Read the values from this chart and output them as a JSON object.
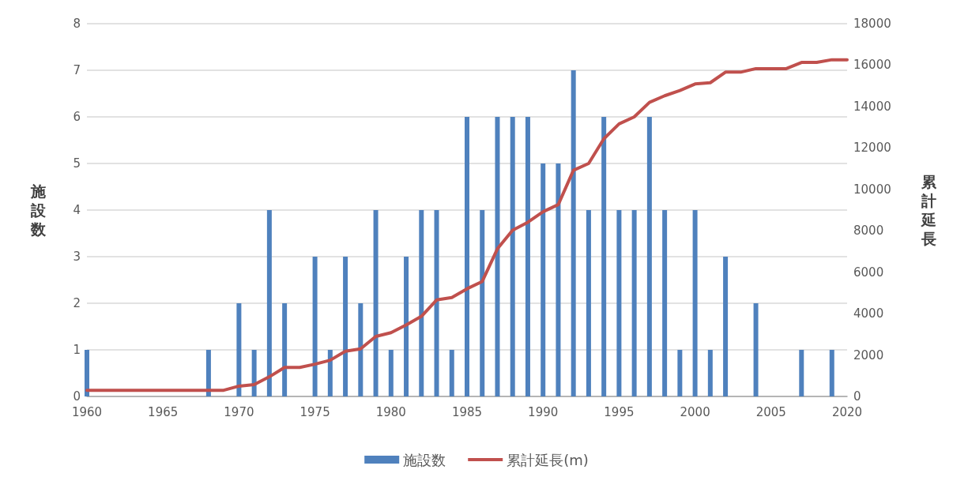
{
  "chart_data": {
    "type": "bar",
    "ylabel": "施設数",
    "y2label": "累計延長",
    "categories": [
      "1960",
      null,
      null,
      null,
      null,
      "1965",
      null,
      null,
      null,
      null,
      "1970",
      null,
      null,
      null,
      null,
      "1975",
      null,
      null,
      null,
      null,
      "1980",
      null,
      null,
      null,
      null,
      "1985",
      null,
      null,
      null,
      null,
      "1990",
      null,
      null,
      null,
      null,
      "1995",
      null,
      null,
      null,
      null,
      "2000",
      null,
      null,
      null,
      null,
      "2005",
      null,
      null,
      null,
      null,
      "2020"
    ],
    "series": [
      {
        "name": "施設数",
        "color": "#4f81bd",
        "values": [
          1,
          0,
          0,
          0,
          0,
          0,
          0,
          0,
          1,
          0,
          2,
          1,
          4,
          2,
          0,
          3,
          1,
          3,
          2,
          4,
          1,
          3,
          4,
          4,
          1,
          6,
          4,
          6,
          6,
          6,
          5,
          5,
          7,
          4,
          6,
          4,
          4,
          6,
          4,
          1,
          4,
          1,
          3,
          0,
          2,
          0,
          0,
          1,
          0,
          1,
          0
        ]
      },
      {
        "name": "累計延長(m)",
        "type": "line",
        "axis": "y2",
        "color": "#c0504d",
        "values": [
          300,
          300,
          300,
          300,
          300,
          300,
          300,
          300,
          300,
          300,
          500,
          570,
          950,
          1400,
          1400,
          1560,
          1750,
          2180,
          2300,
          2900,
          3080,
          3450,
          3870,
          4660,
          4780,
          5200,
          5550,
          7130,
          8030,
          8410,
          8920,
          9260,
          10920,
          11250,
          12440,
          13160,
          13500,
          14200,
          14520,
          14770,
          15090,
          15150,
          15660,
          15660,
          15830,
          15830,
          15830,
          16130,
          16130,
          16260,
          16260
        ]
      }
    ],
    "ylim": [
      0,
      8
    ],
    "yticks": [
      0,
      1,
      2,
      3,
      4,
      5,
      6,
      7,
      8
    ],
    "y2lim": [
      0,
      18000
    ],
    "y2ticks": [
      0,
      2000,
      4000,
      6000,
      8000,
      10000,
      12000,
      14000,
      16000,
      18000
    ],
    "grid": "y",
    "legend": "bottom",
    "marker": "none",
    "line_style": "solid"
  }
}
